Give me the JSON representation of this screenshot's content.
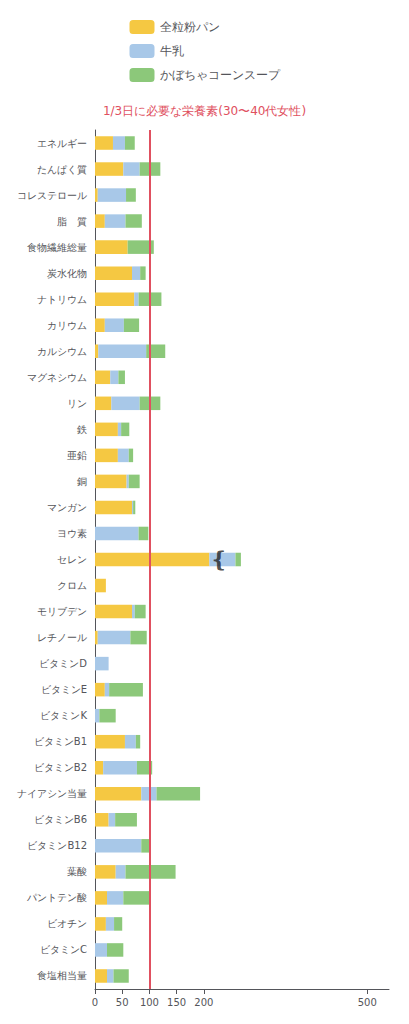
{
  "chart_data": {
    "type": "bar",
    "orientation": "horizontal",
    "stacked": true,
    "title": "1/3日に必要な栄養素(30〜40代女性)",
    "categories": [
      "エネルギー",
      "たんぱく質",
      "コレステロール",
      "脂　質",
      "食物繊維総量",
      "炭水化物",
      "ナトリウム",
      "カリウム",
      "カルシウム",
      "マグネシウム",
      "リン",
      "鉄",
      "亜鉛",
      "銅",
      "マンガン",
      "ヨウ素",
      "セレン",
      "クロム",
      "モリブデン",
      "レチノール",
      "ビタミンD",
      "ビタミンE",
      "ビタミンK",
      "ビタミンB1",
      "ビタミンB2",
      "ナイアシン当量",
      "ビタミンB6",
      "ビタミンB12",
      "葉酸",
      "パントテン酸",
      "ビオチン",
      "ビタミンC",
      "食塩相当量"
    ],
    "series": [
      {
        "name": "全粒粉パン",
        "color": "#F5C842",
        "values": [
          33,
          52,
          5,
          18,
          60,
          68,
          72,
          18,
          6,
          28,
          30,
          42,
          42,
          58,
          68,
          0,
          210,
          20,
          68,
          5,
          0,
          18,
          0,
          55,
          15,
          85,
          25,
          0,
          38,
          22,
          20,
          0,
          22
        ]
      },
      {
        "name": "牛乳",
        "color": "#A8C8E8",
        "values": [
          22,
          30,
          52,
          38,
          0,
          15,
          8,
          35,
          88,
          15,
          52,
          6,
          20,
          4,
          2,
          80,
          48,
          0,
          5,
          60,
          25,
          8,
          8,
          20,
          62,
          28,
          12,
          85,
          18,
          30,
          15,
          22,
          12
        ]
      },
      {
        "name": "かぼちゃコーンスープ",
        "color": "#8CC87A",
        "values": [
          18,
          38,
          18,
          30,
          48,
          10,
          42,
          28,
          35,
          12,
          38,
          15,
          8,
          20,
          4,
          18,
          10,
          0,
          20,
          30,
          0,
          62,
          30,
          8,
          28,
          80,
          40,
          15,
          92,
          48,
          15,
          30,
          28
        ]
      }
    ],
    "xlim": [
      0,
      540
    ],
    "xticks": [
      0,
      50,
      100,
      150,
      200,
      500
    ],
    "grid": false,
    "legend": "top",
    "vline": {
      "value": 100,
      "color": "#E05060"
    },
    "annotations": [
      {
        "text": "❴",
        "x": 228,
        "category": "セレン"
      }
    ]
  }
}
